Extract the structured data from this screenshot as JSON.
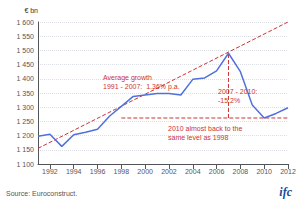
{
  "chart_data": {
    "type": "line",
    "x": [
      1991,
      1992,
      1993,
      1994,
      1995,
      1996,
      1997,
      1998,
      1999,
      2000,
      2001,
      2002,
      2003,
      2004,
      2005,
      2006,
      2007,
      2008,
      2009,
      2010,
      2011,
      2012
    ],
    "values": [
      1198,
      1205,
      1162,
      1203,
      1212,
      1222,
      1268,
      1303,
      1338,
      1343,
      1348,
      1348,
      1343,
      1398,
      1403,
      1428,
      1490,
      1425,
      1308,
      1262,
      1278,
      1298
    ],
    "line_style": "solid",
    "ylabel": "€ bn",
    "xlim": [
      1991,
      2012
    ],
    "ylim": [
      1100,
      1600
    ],
    "xticks": [
      1992,
      1994,
      1996,
      1998,
      2000,
      2002,
      2004,
      2006,
      2008,
      2010,
      2012
    ],
    "yticks": [
      {
        "value": 1100,
        "label": "1 100"
      },
      {
        "value": 1150,
        "label": "1 150"
      },
      {
        "value": 1200,
        "label": "1 200"
      },
      {
        "value": 1250,
        "label": "1 250"
      },
      {
        "value": 1300,
        "label": "1 300"
      },
      {
        "value": 1350,
        "label": "1 350"
      },
      {
        "value": 1400,
        "label": "1 400"
      },
      {
        "value": 1450,
        "label": "1 450"
      },
      {
        "value": 1500,
        "label": "1 500"
      },
      {
        "value": 1550,
        "label": "1 550"
      },
      {
        "value": 1600,
        "label": "1 600"
      }
    ],
    "grid": true,
    "reference_lines": [
      {
        "x": [
          1991,
          2012
        ],
        "values": [
          1155,
          1600
        ],
        "color": "#cc3333",
        "line_style": "dashed"
      },
      {
        "x": [
          1998,
          2012
        ],
        "values": [
          1262,
          1262
        ],
        "color": "#cc3333",
        "line_style": "dashed"
      },
      {
        "x": [
          2007,
          2007
        ],
        "values": [
          1262,
          1490
        ],
        "color": "#cc3333",
        "line_style": "dashed"
      }
    ],
    "annotations": [
      {
        "text": "Average growth\n1991 - 2007:  1.36% p.a.",
        "color": "#cc3333"
      },
      {
        "text": "2007 - 2010:\n-15.2%",
        "color": "#cc3333"
      },
      {
        "text": "2010 almost back to the\nsame level as 1998",
        "color": "#cc3333"
      }
    ],
    "source": "Source: Euroconstruct.",
    "logo": {
      "text": "ifc",
      "color": "#1a4a9a"
    }
  }
}
